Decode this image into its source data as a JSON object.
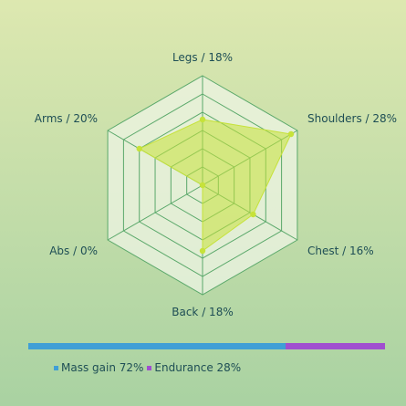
{
  "chart_data": {
    "type": "radar",
    "axes": [
      "Legs",
      "Shoulders",
      "Chest",
      "Back",
      "Abs",
      "Arms"
    ],
    "values": [
      18,
      28,
      16,
      18,
      0,
      20
    ],
    "labels": [
      "Legs / 18%",
      "Shoulders / 28%",
      "Chest / 16%",
      "Back / 18%",
      "Abs / 0%",
      "Arms / 20%"
    ],
    "rmax": 30,
    "grid_levels": 6,
    "colors": {
      "fill": "#c6e23a",
      "point": "#c6e23a",
      "grid": "#5aa86a",
      "web_fill": "#eef4e4"
    }
  },
  "split_bar": {
    "segments": [
      {
        "label": "Mass gain 72%",
        "value": 72,
        "color": "#3f9fd6"
      },
      {
        "label": "Endurance 28%",
        "value": 28,
        "color": "#a04fcf"
      }
    ]
  }
}
